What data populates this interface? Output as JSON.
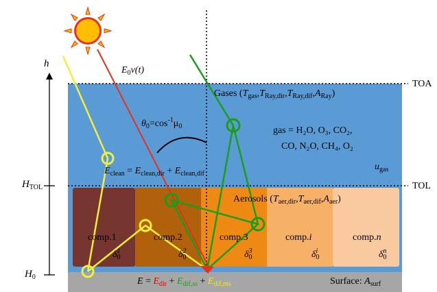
{
  "axis": {
    "height_var": "h",
    "toa_label": "TOA",
    "tol_label": "TOL",
    "h_tol_main": "H",
    "h_tol_sub": "TOL",
    "h0_main": "H",
    "h0_sub": "0"
  },
  "sun": {
    "label_e0": "E",
    "label_e0_sub": "0",
    "label_rest": "v(t)"
  },
  "gases": {
    "title": "Gases (",
    "t_gas": "T",
    "t_gas_sub": "gas",
    "t_ray_dir": "T",
    "t_ray_dir_sub": "Ray,dir",
    "t_ray_dif": "T",
    "t_ray_dif_sub": "Ray,dif",
    "a_ray": "A",
    "a_ray_sub": "Ray",
    "comma": ",",
    "close": ")",
    "list_line1": "gas = H₂O, O₃, CO₂,",
    "list_line2": "CO, N₂O, CH₄, O₂",
    "u_gas": "u",
    "u_gas_sub": "gas"
  },
  "angle": {
    "theta": "θ",
    "theta_sub": "0",
    "eq": "=cos",
    "pow": "-1",
    "mu": "μ",
    "mu_sub": "0"
  },
  "eclean": {
    "e": "E",
    "e_sub": "clean",
    "eq": " = ",
    "e_dir": "E",
    "e_dir_sub": "clean,dir",
    "plus": " + ",
    "e_dif": "E",
    "e_dif_sub": "clean,dif"
  },
  "aerosols": {
    "title": "Aerosols (",
    "t_dir": "T",
    "t_dir_sub": "aer,dir",
    "t_dif": "T",
    "t_dif_sub": "aer,dif",
    "a": "A",
    "a_sub": "aer",
    "comma": ",",
    "close": ")"
  },
  "components": [
    {
      "name": "comp.",
      "idx": "1",
      "delta": "δ",
      "d_sub": "0",
      "d_sup": "1"
    },
    {
      "name": "comp.",
      "idx": "2",
      "delta": "δ",
      "d_sub": "0",
      "d_sup": "2"
    },
    {
      "name": "comp.",
      "idx": "3",
      "delta": "δ",
      "d_sub": "0",
      "d_sup": "3"
    },
    {
      "name": "comp.",
      "idx": "i",
      "delta": "δ",
      "d_sub": "0",
      "d_sup": "i"
    },
    {
      "name": "comp.",
      "idx": "n",
      "delta": "δ",
      "d_sub": "0",
      "d_sup": "n"
    }
  ],
  "surface": {
    "e": "E",
    "eq": " = ",
    "e_dir": "E",
    "e_dir_sub": "dir",
    "plus": " + ",
    "e_ss": "E",
    "e_ss_sub": "dif,ss",
    "e_ms": "E",
    "e_ms_sub": "dif,ms",
    "label": "Surface: ",
    "a": "A",
    "a_sub": "surf"
  },
  "colors": {
    "atmosphere": "#5b9bd5",
    "surface": "#a6a6a6",
    "comp1": "#76352e",
    "comp2": "#b1610c",
    "comp3": "#ee8a14",
    "comp_i": "#f7b068",
    "comp_n": "#f9caa0",
    "ray_direct": "#e8301d",
    "ray_green": "#1a9e1a",
    "ray_yellow": "#f3ef3a",
    "sun": "#ffbf00"
  }
}
